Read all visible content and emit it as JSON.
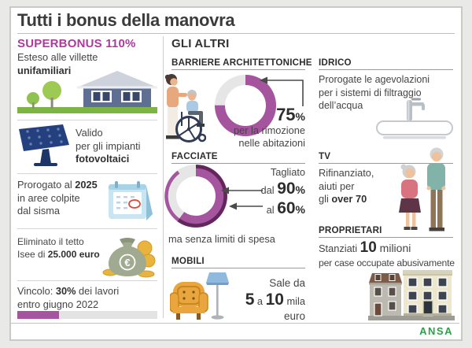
{
  "title": "Tutti i bonus della manovra",
  "brand": "ANSA",
  "colors": {
    "accent_magenta": "#ac3a9c",
    "donut_magenta": "#a4559d",
    "donut_dark": "#63265c",
    "ansa_green": "#2f9e4a"
  },
  "superbonus": {
    "heading": "SUPERBONUS 110%",
    "item1": {
      "l1": "Esteso alle villette",
      "l2": "unifamiliari"
    },
    "item2": {
      "l1": "Valido",
      "l2": "per gli impianti",
      "l3": "fotovoltaici"
    },
    "item3": {
      "l1a": "Prorogato al ",
      "l1b": "2025",
      "l2": "in aree colpite",
      "l3": "dal sisma"
    },
    "item4": {
      "l1": "Eliminato il tetto",
      "l2a": "Isee di ",
      "l2b": "25.000 euro",
      "bag_symbol": "€"
    },
    "item5": {
      "l1a": "Vincolo: ",
      "l1b": "30%",
      "l1c": " dei lavori",
      "l2": "entro giugno 2022",
      "progress_pct": 30
    }
  },
  "altri": {
    "heading": "GLI ALTRI",
    "barriere": {
      "title": "BARRIERE ARCHITETTONICHE",
      "value": "75",
      "unit": "%",
      "cap1": "per la rimozione",
      "cap2": "nelle abitazioni",
      "donut_pct": 75
    },
    "facciate": {
      "title": "FACCIATE",
      "l1": "Tagliato",
      "from_pre": "dal ",
      "from_val": "90",
      "from_unit": "%",
      "to_pre": "al ",
      "to_val": "60",
      "to_unit": "%",
      "cap": "ma senza limiti di spesa",
      "donut_inner_pct": 60,
      "donut_outer_pct": 90
    },
    "mobili": {
      "title": "MOBILI",
      "l1": "Sale da",
      "v1": "5",
      "mid": " a ",
      "v2": "10",
      "tail": " mila",
      "l2": "euro"
    },
    "idrico": {
      "title": "IDRICO",
      "l1": "Prorogate le agevolazioni",
      "l2": "per i sistemi di filtraggio",
      "l3": "dell’acqua"
    },
    "tv": {
      "title": "TV",
      "l1": "Rifinanziato,",
      "l2": "aiuti per",
      "l3a": "gli ",
      "l3b": "over 70"
    },
    "proprietari": {
      "title": "PROPRIETARI",
      "l1a": "Stanziati ",
      "l1b": "10",
      "l1c": " milioni",
      "l2": "per case occupate abusivamente"
    }
  },
  "chart_data": [
    {
      "type": "pie",
      "title": "Barriere architettoniche - detrazione",
      "values": [
        75,
        25
      ],
      "labels": [
        "75% per la rimozione nelle abitazioni",
        "resto"
      ],
      "note": "donut, quota 75% in magenta, resto grigio, inizio a ore 12 in senso orario"
    },
    {
      "type": "pie",
      "title": "Facciate - aliquota tagliata",
      "series": [
        {
          "name": "dal",
          "value": 90
        },
        {
          "name": "al",
          "value": 60
        }
      ],
      "note": "due archi concentrici: arco sottile esterno 90%, anello spesso magenta 60%; ma senza limiti di spesa"
    },
    {
      "type": "bar",
      "title": "Superbonus - vincolo lavori",
      "categories": [
        "30% dei lavori entro giugno 2022"
      ],
      "values": [
        30
      ],
      "xlim": [
        0,
        100
      ],
      "note": "barra di avanzamento magenta su traccia grigia"
    }
  ]
}
